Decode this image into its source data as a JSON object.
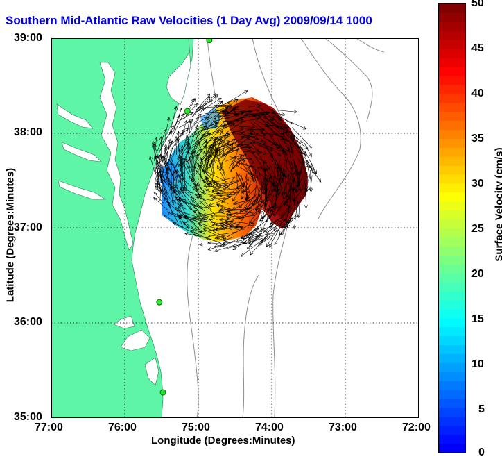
{
  "title": "Southern Mid-Atlantic Raw Velocities (1 Day Avg) 2009/09/14 1000",
  "x_axis": {
    "label": "Longitude (Degrees:Minutes)",
    "ticks": [
      "77:00",
      "76:00",
      "75:00",
      "74:00",
      "73:00",
      "72:00"
    ]
  },
  "y_axis": {
    "label": "Latitude (Degrees:Minutes)",
    "ticks": [
      "39:00",
      "38:00",
      "37:00",
      "36:00",
      "35:00"
    ]
  },
  "colorbar": {
    "label": "Surface Velocity (cm/s)",
    "ticks": [
      "50",
      "45",
      "40",
      "35",
      "30",
      "25",
      "20",
      "15",
      "10",
      "5",
      "0"
    ],
    "min": 0,
    "max": 50
  },
  "colors": {
    "land": "#5ff5a7",
    "title": "#0000e0",
    "site_marker": "#2ee82e"
  },
  "chart_data": {
    "type": "map",
    "lon_range": [
      -77,
      -72
    ],
    "lat_range": [
      35,
      39
    ],
    "grid": true,
    "colorbar_placement": "right",
    "radar_sites": [
      {
        "lon": -74.85,
        "lat": 38.98
      },
      {
        "lon": -75.15,
        "lat": 38.23
      },
      {
        "lon": -75.53,
        "lat": 36.22
      },
      {
        "lon": -75.48,
        "lat": 35.27
      }
    ]
  }
}
